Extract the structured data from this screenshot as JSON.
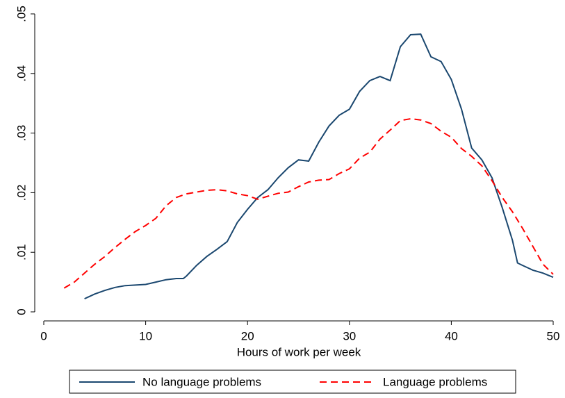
{
  "chart_data": {
    "type": "line",
    "xlabel": "Hours of work per week",
    "xlim": [
      0,
      50
    ],
    "xticks": [
      0,
      10,
      20,
      30,
      40,
      50
    ],
    "ylim": [
      0,
      0.05
    ],
    "yticks": [
      0,
      {
        "value": 0.01,
        "label": ".01"
      },
      {
        "value": 0.02,
        "label": ".02"
      },
      {
        "value": 0.03,
        "label": ".03"
      },
      {
        "value": 0.04,
        "label": ".04"
      },
      {
        "value": 0.05,
        "label": ".05"
      }
    ],
    "grid": false,
    "legend": "bottom",
    "series": [
      {
        "name": "No language problems",
        "color": "#1a476f",
        "dash": "solid",
        "x": [
          4,
          5,
          6,
          7,
          8,
          9,
          10,
          11,
          12,
          13,
          13.7,
          14,
          15,
          16,
          17,
          18,
          19,
          20,
          21,
          22,
          23,
          24,
          25,
          26,
          27,
          28,
          29,
          30,
          31,
          32,
          33,
          34,
          35,
          36,
          37,
          38,
          39,
          40,
          41,
          42,
          43,
          44,
          45,
          46,
          46.5,
          47,
          48,
          49,
          50
        ],
        "values": [
          0.0022,
          0.003,
          0.0036,
          0.0041,
          0.0044,
          0.0045,
          0.0046,
          0.005,
          0.0054,
          0.0056,
          0.0056,
          0.006,
          0.0078,
          0.0093,
          0.0105,
          0.0118,
          0.015,
          0.0172,
          0.0192,
          0.0205,
          0.0225,
          0.0242,
          0.0255,
          0.0253,
          0.0285,
          0.0312,
          0.033,
          0.034,
          0.037,
          0.0388,
          0.0395,
          0.0388,
          0.0445,
          0.0465,
          0.0466,
          0.0428,
          0.042,
          0.039,
          0.034,
          0.0275,
          0.0255,
          0.0225,
          0.0175,
          0.012,
          0.0082,
          0.0078,
          0.007,
          0.0065,
          0.0058
        ]
      },
      {
        "name": "Language problems",
        "color": "#ff0000",
        "dash": "dashed",
        "x": [
          2,
          3,
          4,
          5,
          6,
          7,
          8,
          9,
          10,
          11,
          12,
          13,
          14,
          15,
          16,
          17,
          18,
          19,
          20,
          21,
          22,
          23,
          24,
          25,
          26,
          27,
          28,
          29,
          30,
          31,
          32,
          33,
          34,
          35,
          36,
          37,
          38,
          39,
          40,
          41,
          42,
          43,
          44,
          45,
          46,
          47,
          48,
          49,
          50
        ],
        "values": [
          0.004,
          0.005,
          0.0065,
          0.008,
          0.0093,
          0.0108,
          0.0122,
          0.0135,
          0.0145,
          0.0157,
          0.0178,
          0.0192,
          0.0198,
          0.0201,
          0.0204,
          0.0205,
          0.0203,
          0.0198,
          0.0195,
          0.0189,
          0.0194,
          0.0199,
          0.0201,
          0.021,
          0.0218,
          0.0221,
          0.0222,
          0.0232,
          0.024,
          0.0258,
          0.0268,
          0.029,
          0.0305,
          0.0321,
          0.0324,
          0.0322,
          0.0316,
          0.0303,
          0.0293,
          0.0274,
          0.0261,
          0.0245,
          0.022,
          0.0192,
          0.0168,
          0.014,
          0.011,
          0.008,
          0.0063
        ]
      }
    ]
  }
}
